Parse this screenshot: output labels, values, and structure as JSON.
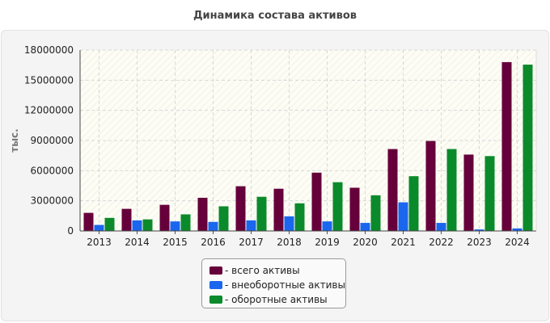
{
  "chart_data": {
    "type": "bar",
    "title": "Динамика состава активов",
    "ylabel": "тыс.",
    "xlabel": "",
    "ylim": [
      0,
      18000000
    ],
    "yticks": [
      "0",
      "3000000",
      "6000000",
      "9000000",
      "12000000",
      "15000000",
      "18000000"
    ],
    "ytick_values": [
      0,
      3000000,
      6000000,
      9000000,
      12000000,
      15000000,
      18000000
    ],
    "categories": [
      "2013",
      "2014",
      "2015",
      "2016",
      "2017",
      "2018",
      "2019",
      "2020",
      "2021",
      "2022",
      "2023",
      "2024"
    ],
    "series": [
      {
        "name": "- всего активы",
        "color": "#66003a",
        "values": [
          1800000,
          2200000,
          2600000,
          3300000,
          4450000,
          4200000,
          5800000,
          4300000,
          8150000,
          8950000,
          7600000,
          16800000
        ]
      },
      {
        "name": "- внеоборотные активы",
        "color": "#1a66ee",
        "values": [
          600000,
          1050000,
          950000,
          900000,
          1050000,
          1450000,
          950000,
          800000,
          2850000,
          800000,
          150000,
          250000
        ]
      },
      {
        "name": "- оборотные активы",
        "color": "#0b8a2b",
        "values": [
          1300000,
          1150000,
          1650000,
          2450000,
          3400000,
          2750000,
          4850000,
          3550000,
          5450000,
          8150000,
          7450000,
          16550000
        ]
      }
    ],
    "legend_position": "bottom-center",
    "grid": true
  }
}
